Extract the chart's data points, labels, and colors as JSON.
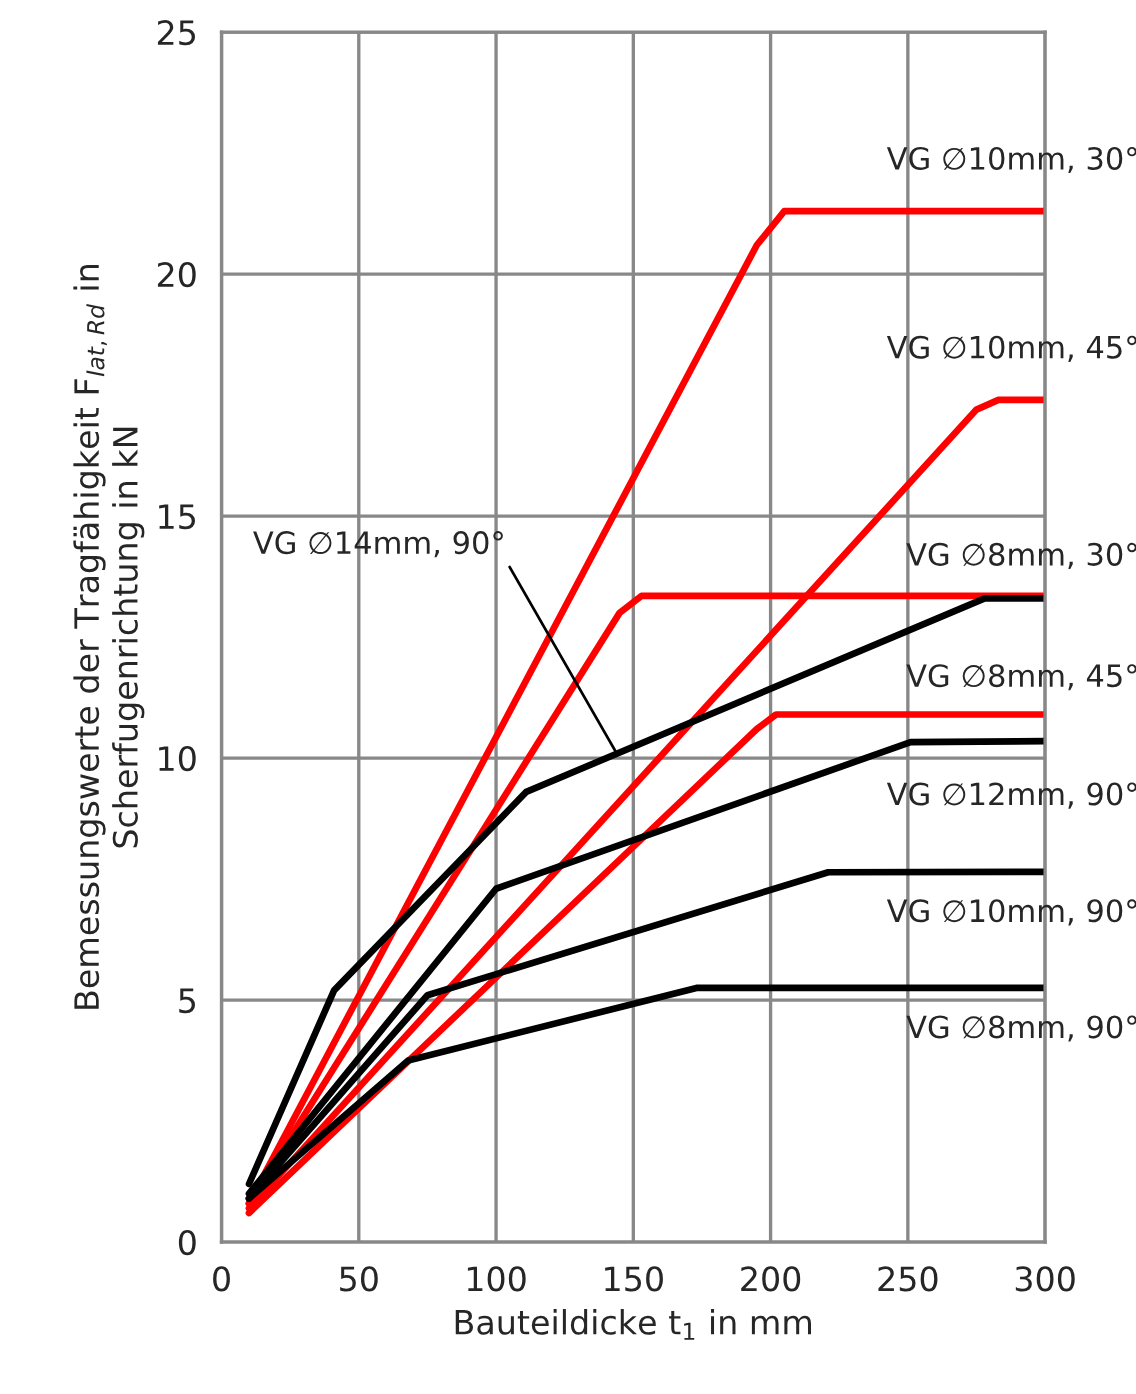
{
  "chart_data": {
    "type": "line",
    "xlabel": "Bauteildicke t$_{1}$ in mm",
    "ylabel": "Bemessungswerte der Tragfähigkeit F$_{lat,Rd}$ in\nScherfugenrichtung in kN",
    "xlim": [
      0,
      300
    ],
    "xticks": [
      0,
      50,
      100,
      150,
      200,
      250,
      300
    ],
    "ylim": [
      0,
      25
    ],
    "yticks": [
      0,
      5,
      10,
      15,
      20,
      25
    ],
    "grid": true,
    "legend": false,
    "marker": "none",
    "line_style": "solid",
    "series": [
      {
        "name": "VG ∅10mm, 30°",
        "color": "#ff0000",
        "x": [
          10,
          195,
          205,
          300
        ],
        "values": [
          0.8,
          20.6,
          21.3,
          21.3
        ]
      },
      {
        "name": "VG ∅10mm, 45°",
        "color": "#ff0000",
        "x": [
          10,
          275,
          283,
          300
        ],
        "values": [
          0.7,
          17.2,
          17.4,
          17.4
        ]
      },
      {
        "name": "VG ∅8mm, 30°",
        "color": "#ff0000",
        "x": [
          10,
          145,
          153,
          300
        ],
        "values": [
          0.8,
          13.0,
          13.35,
          13.35
        ]
      },
      {
        "name": "VG ∅8mm, 45°",
        "color": "#ff0000",
        "x": [
          10,
          195,
          202,
          300
        ],
        "values": [
          0.6,
          10.6,
          10.9,
          10.9
        ]
      },
      {
        "name": "VG ∅14mm, 90°",
        "color": "#000000",
        "x": [
          10,
          41,
          111,
          278,
          300
        ],
        "values": [
          1.2,
          5.2,
          9.3,
          13.3,
          13.3
        ]
      },
      {
        "name": "VG ∅12mm, 90°",
        "color": "#000000",
        "x": [
          10,
          100,
          251,
          300
        ],
        "values": [
          1.0,
          7.3,
          10.33,
          10.35
        ]
      },
      {
        "name": "VG ∅10mm, 90°",
        "color": "#000000",
        "x": [
          10,
          75,
          221,
          300
        ],
        "values": [
          0.9,
          5.1,
          7.64,
          7.65
        ]
      },
      {
        "name": "VG ∅8mm, 90°",
        "color": "#000000",
        "x": [
          10,
          68,
          173,
          300
        ],
        "values": [
          0.9,
          3.75,
          5.25,
          5.25
        ]
      }
    ]
  }
}
